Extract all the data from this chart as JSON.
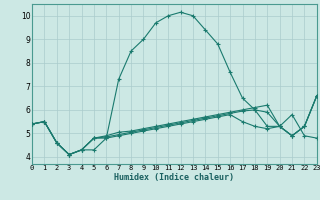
{
  "title": "",
  "xlabel": "Humidex (Indice chaleur)",
  "bg_color": "#cce8e4",
  "grid_color": "#aacccc",
  "line_color": "#1a7a6e",
  "xlim": [
    0,
    23
  ],
  "ylim": [
    3.7,
    10.5
  ],
  "xticks": [
    0,
    1,
    2,
    3,
    4,
    5,
    6,
    7,
    8,
    9,
    10,
    11,
    12,
    13,
    14,
    15,
    16,
    17,
    18,
    19,
    20,
    21,
    22,
    23
  ],
  "yticks": [
    4,
    5,
    6,
    7,
    8,
    9,
    10
  ],
  "series": [
    [
      5.4,
      5.5,
      4.6,
      4.1,
      4.3,
      4.3,
      4.8,
      7.3,
      8.5,
      9.0,
      9.7,
      10.0,
      10.15,
      10.0,
      9.4,
      8.8,
      7.6,
      6.5,
      6.0,
      5.9,
      5.3,
      5.8,
      4.9,
      4.8
    ],
    [
      5.4,
      5.5,
      4.6,
      4.1,
      4.3,
      4.8,
      4.9,
      5.05,
      5.1,
      5.2,
      5.3,
      5.4,
      5.5,
      5.6,
      5.7,
      5.8,
      5.9,
      6.0,
      6.1,
      6.2,
      5.3,
      4.9,
      5.3,
      6.6
    ],
    [
      5.4,
      5.5,
      4.6,
      4.1,
      4.3,
      4.8,
      4.85,
      4.95,
      5.05,
      5.15,
      5.25,
      5.35,
      5.45,
      5.55,
      5.65,
      5.75,
      5.85,
      5.95,
      6.0,
      5.3,
      5.3,
      4.9,
      5.3,
      6.6
    ],
    [
      5.4,
      5.5,
      4.6,
      4.1,
      4.3,
      4.8,
      4.8,
      4.9,
      5.0,
      5.1,
      5.2,
      5.3,
      5.4,
      5.5,
      5.6,
      5.7,
      5.8,
      5.5,
      5.3,
      5.2,
      5.3,
      4.9,
      5.3,
      6.6
    ]
  ]
}
